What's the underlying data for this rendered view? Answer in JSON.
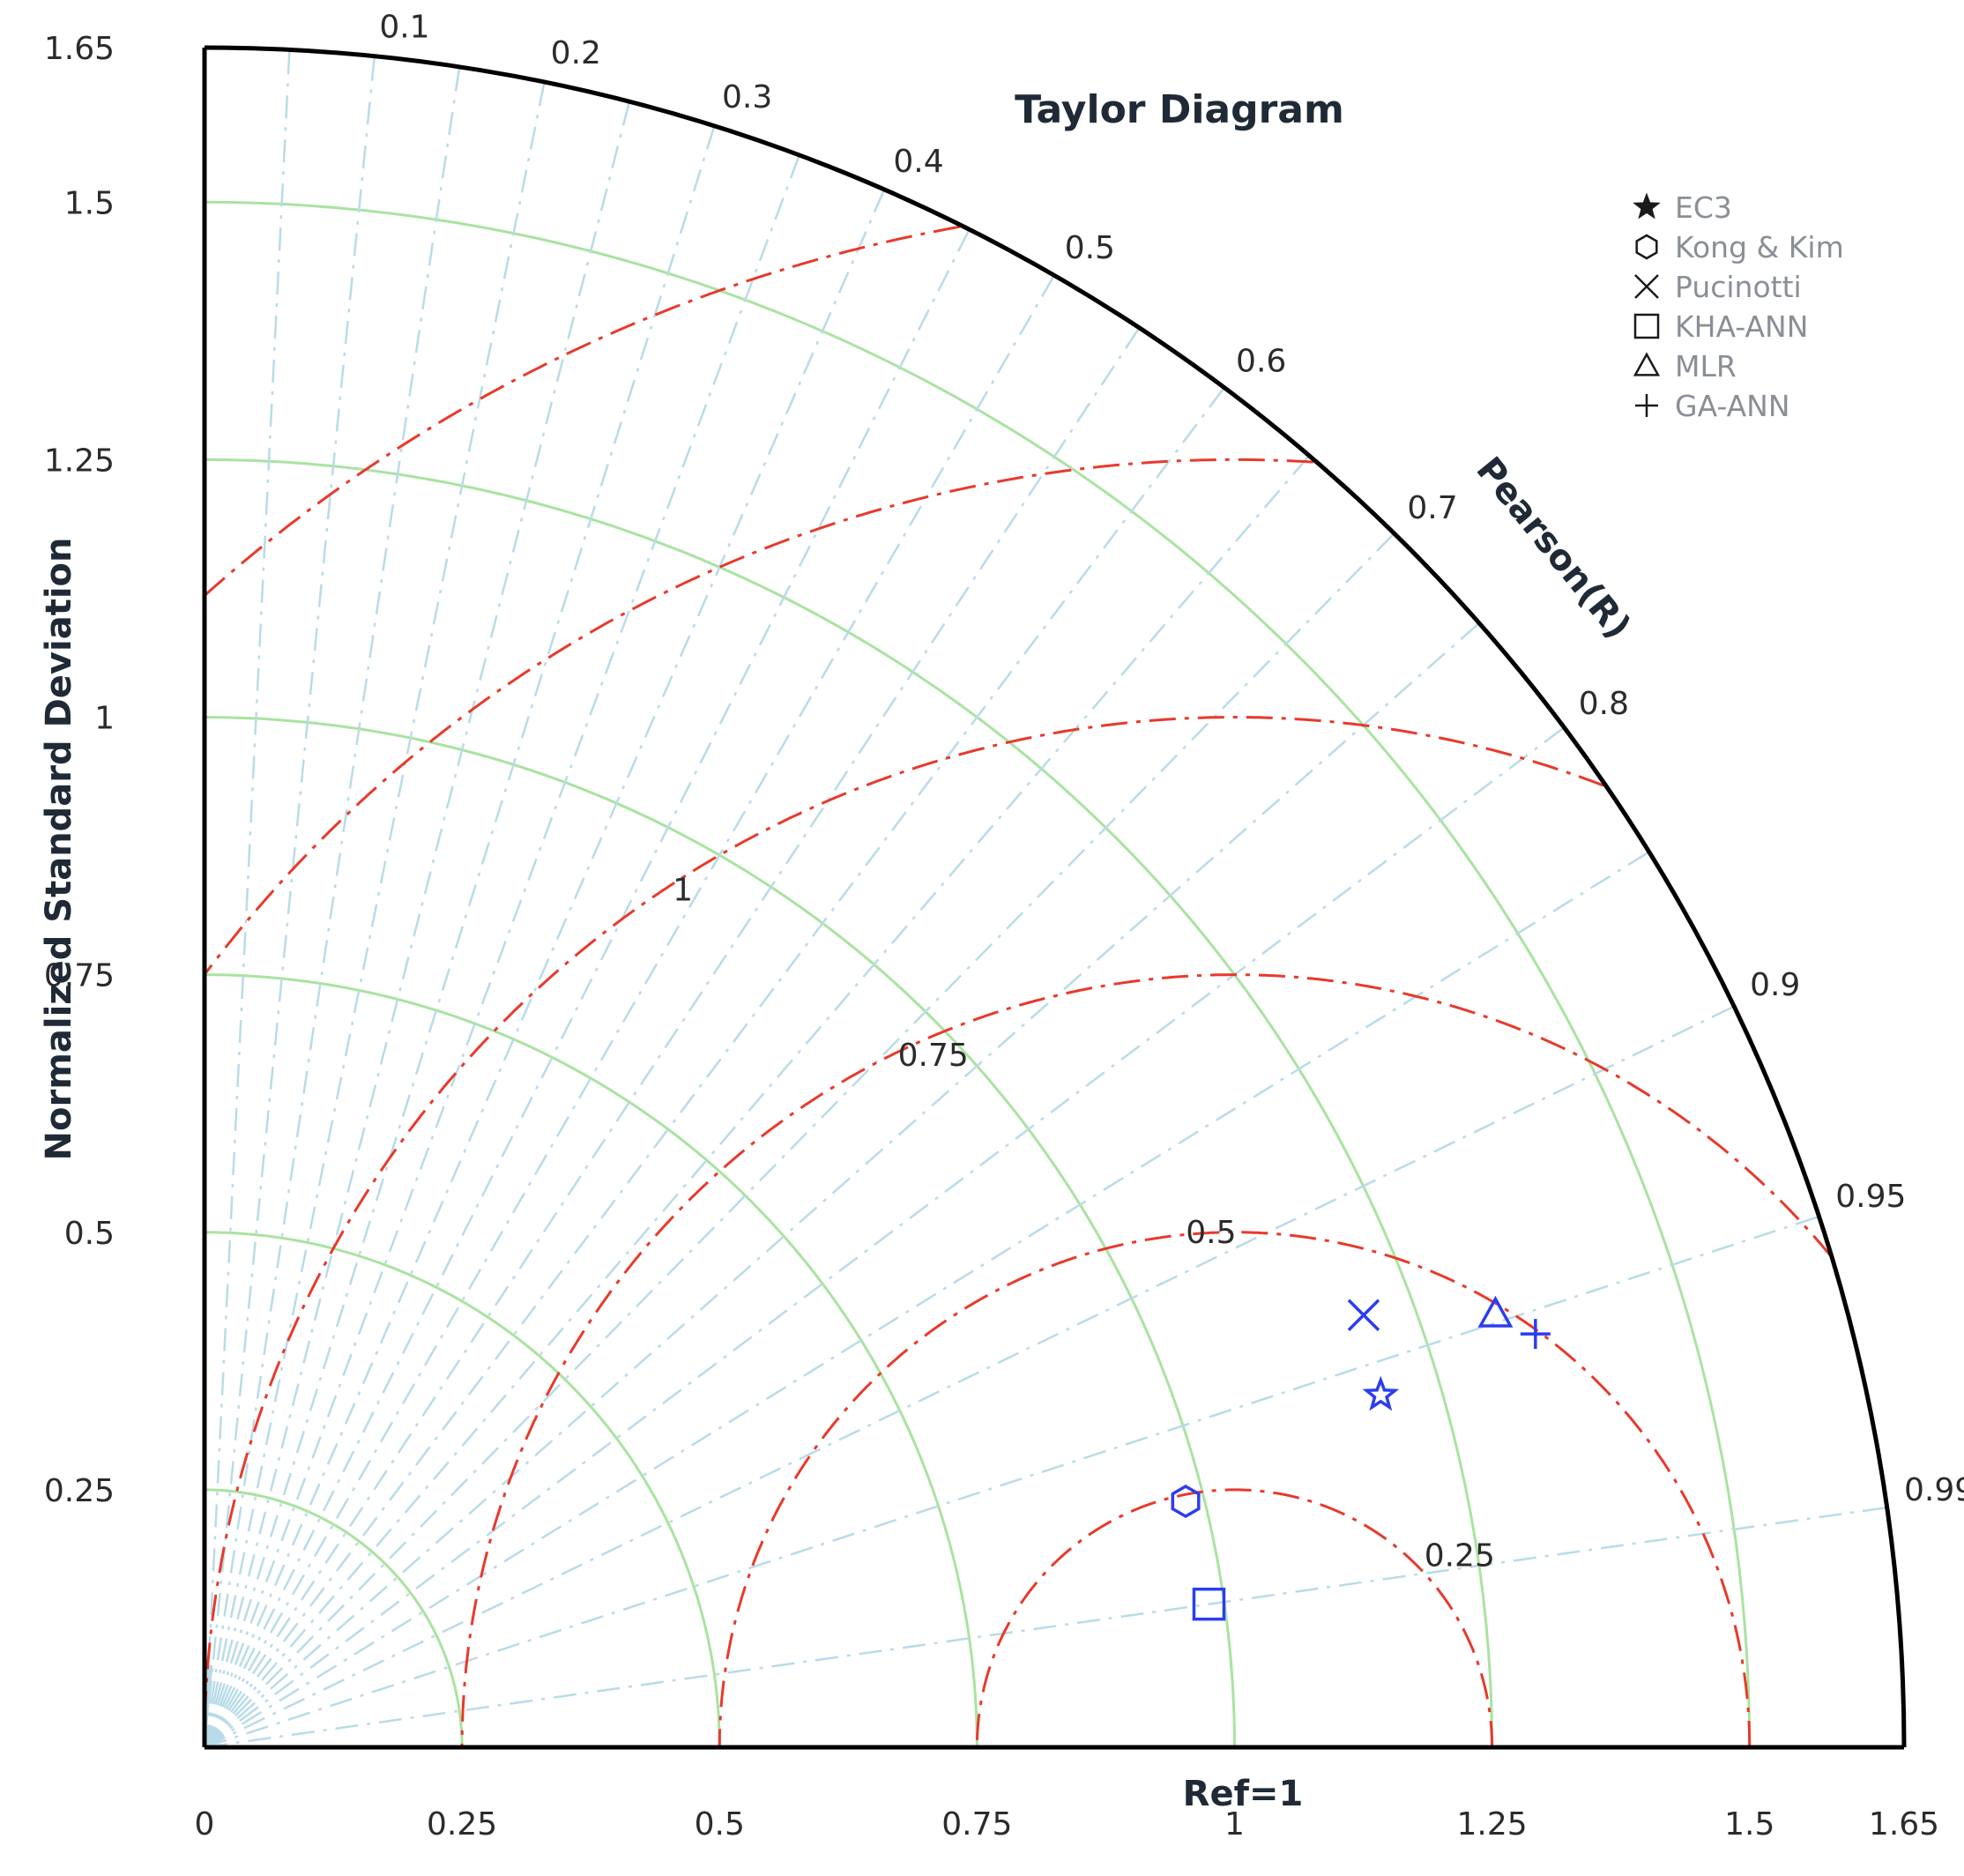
{
  "chart_data": {
    "type": "scatter",
    "subtype": "taylor-diagram",
    "title": "Taylor Diagram",
    "ylabel": "Normalized Standard Deviation",
    "xlabel": "Ref=1",
    "corr_label": "Pearson(R)",
    "std_range": [
      0,
      1.65
    ],
    "std_ticks": [
      0,
      0.25,
      0.5,
      0.75,
      1,
      1.25,
      1.5,
      1.65
    ],
    "std_tick_labels": [
      "0",
      "0.25",
      "0.5",
      "0.75",
      "1",
      "1.25",
      "1.5",
      "1.65"
    ],
    "std_circles": [
      0.25,
      0.5,
      0.75,
      1,
      1.25,
      1.5
    ],
    "corr_ticks": [
      0.1,
      0.2,
      0.3,
      0.4,
      0.5,
      0.6,
      0.7,
      0.8,
      0.9,
      0.95,
      0.99
    ],
    "corr_tick_labels": [
      "0.1",
      "0.2",
      "0.3",
      "0.4",
      "0.5",
      "0.6",
      "0.7",
      "0.8",
      "0.9",
      "0.95",
      "0.99"
    ],
    "rms_circles": [
      0.25,
      0.5,
      0.75,
      1,
      1.25,
      1.5
    ],
    "rms_labels": [
      {
        "value": 0.25,
        "text": "0.25"
      },
      {
        "value": 0.5,
        "text": "0.5"
      },
      {
        "value": 0.75,
        "text": "0.75"
      },
      {
        "value": 1,
        "text": "1"
      }
    ],
    "reference_std": 1,
    "legend_position": "top-right",
    "colors": {
      "std_circle": "#a9e3a0",
      "rms_circle": "#e8392b",
      "corr_line": "#b9dbe8",
      "marker": "#2b3df0",
      "axis": "#000000"
    },
    "series": [
      {
        "name": "EC3",
        "marker": "star",
        "std": 1.192,
        "corr": 0.958
      },
      {
        "name": "Kong & Kim",
        "marker": "hexagon",
        "std": 0.982,
        "corr": 0.97
      },
      {
        "name": "Pucinotti",
        "marker": "x",
        "std": 1.201,
        "corr": 0.937
      },
      {
        "name": "KHA-ANN",
        "marker": "square",
        "std": 0.985,
        "corr": 0.99
      },
      {
        "name": "MLR",
        "marker": "triangle",
        "std": 1.322,
        "corr": 0.948
      },
      {
        "name": "GA-ANN",
        "marker": "plus",
        "std": 1.353,
        "corr": 0.955
      }
    ]
  }
}
